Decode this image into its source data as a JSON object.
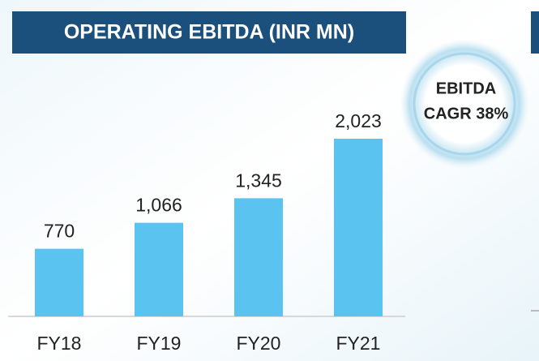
{
  "chart_data": {
    "type": "bar",
    "title": "OPERATING EBITDA (INR MN)",
    "categories": [
      "FY18",
      "FY19",
      "FY20",
      "FY21"
    ],
    "values": [
      770,
      1066,
      1345,
      2023
    ],
    "value_labels": [
      "770",
      "1,066",
      "1,345",
      "2,023"
    ],
    "color": "#5bc3f0",
    "annotation": [
      "EBITDA",
      "CAGR 38%"
    ]
  }
}
